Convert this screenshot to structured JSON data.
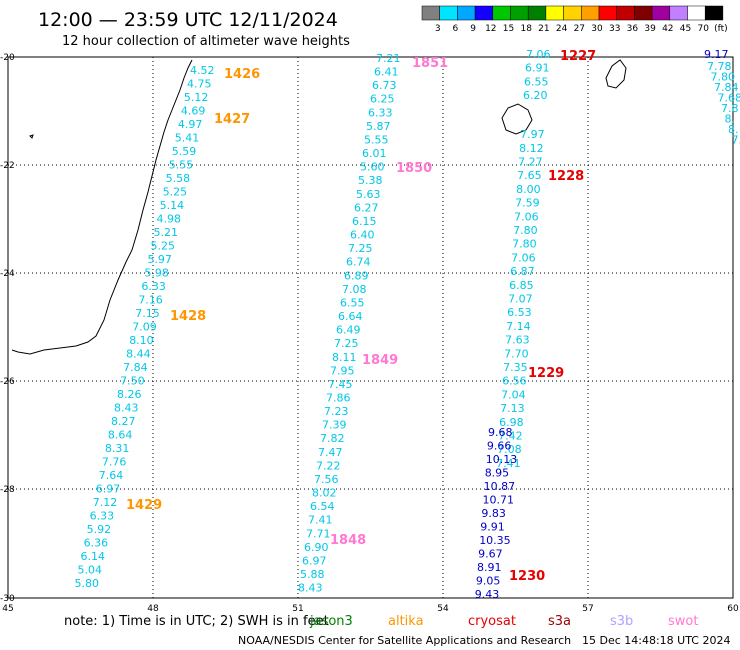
{
  "header": {
    "title": "12:00 — 23:59 UTC 12/11/2024",
    "subtitle": "12 hour collection of altimeter wave heights"
  },
  "legend": {
    "colors": [
      "#808080",
      "#00e5ff",
      "#00a8ff",
      "#1400ff",
      "#00c800",
      "#00a000",
      "#008000",
      "#ffff00",
      "#ffd200",
      "#ffa000",
      "#ff0000",
      "#c00000",
      "#800000",
      "#a000a0",
      "#c080ff",
      "#ffffff",
      "#000000"
    ],
    "labels": [
      "3",
      "6",
      "9",
      "12",
      "15",
      "18",
      "21",
      "24",
      "27",
      "30",
      "33",
      "36",
      "39",
      "42",
      "45",
      "70",
      "(ft)"
    ]
  },
  "axes": {
    "x_ticks": [
      "45",
      "48",
      "51",
      "54",
      "57",
      "60"
    ],
    "y_ticks": [
      "-20",
      "-22",
      "-24",
      "-26",
      "-28",
      "-30"
    ]
  },
  "tracks": [
    {
      "name": "t1426",
      "color": "#00c8e6",
      "labels": [
        "4.52",
        "4.75",
        "5.12",
        "4.69",
        "4.97",
        "5.41",
        "5.59",
        "5.55",
        "5.58",
        "5.25",
        "5.14",
        "4.98",
        "5.21",
        "5.25",
        "5.97",
        "5.98",
        "6.33",
        "7.16",
        "7.15",
        "7.09",
        "8.10",
        "8.44",
        "7.84",
        "7.50",
        "8.26",
        "8.43",
        "8.27",
        "8.64",
        "8.31",
        "7.76",
        "7.64",
        "6.97",
        "7.12",
        "6.33",
        "5.92",
        "6.36",
        "6.14",
        "5.04",
        "5.80"
      ]
    },
    {
      "name": "t1850",
      "color": "#00c8e6",
      "labels": [
        "7.21",
        "6.41",
        "6.73",
        "6.25",
        "6.33",
        "5.87",
        "5.55",
        "6.01",
        "5.60",
        "5.38",
        "5.63",
        "6.27",
        "6.15",
        "6.40",
        "7.25",
        "6.74",
        "6.89",
        "7.08",
        "6.55",
        "6.64",
        "6.49",
        "7.25",
        "8.11",
        "7.95",
        "7.45",
        "7.86",
        "7.23",
        "7.39",
        "7.82",
        "7.47",
        "7.22",
        "7.56",
        "8.02",
        "6.54",
        "7.41",
        "7.71",
        "6.90",
        "6.97",
        "5.88",
        "8.43"
      ]
    },
    {
      "name": "t1228",
      "color": "#00c8e6",
      "labels": [
        "7.06",
        "6.91",
        "6.55",
        "6.20",
        "7.97",
        "8.12",
        "7.27",
        "7.65",
        "8.00",
        "7.59",
        "7.06",
        "7.80",
        "7.80",
        "7.06",
        "6.87",
        "6.85",
        "7.07",
        "6.53",
        "7.14",
        "7.63",
        "7.70",
        "7.35",
        "6.56",
        "7.04",
        "7.13",
        "6.98",
        "7.42",
        "7.08",
        "7.41"
      ]
    },
    {
      "name": "t1230",
      "color": "#0000c8",
      "labels": [
        "9.68",
        "9.66",
        "10.13",
        "8.95",
        "10.87",
        "10.71",
        "9.83",
        "9.91",
        "10.35",
        "9.67",
        "8.91",
        "9.05",
        "9.43"
      ]
    },
    {
      "name": "tRight1",
      "color": "#0000c8",
      "labels": [
        "9.17"
      ]
    },
    {
      "name": "tRight2",
      "color": "#00c8e6",
      "labels": [
        "7.78",
        "7.80",
        "7.84",
        "7.68",
        "7.8",
        "8.",
        "8.",
        "7."
      ]
    }
  ],
  "times": [
    {
      "label": "1426",
      "color": "#ff9600"
    },
    {
      "label": "1427",
      "color": "#ff9600"
    },
    {
      "label": "1428",
      "color": "#ff9600"
    },
    {
      "label": "1429",
      "color": "#ff9600"
    },
    {
      "label": "1851",
      "color": "#ff78d2"
    },
    {
      "label": "1850",
      "color": "#ff78d2"
    },
    {
      "label": "1849",
      "color": "#ff78d2"
    },
    {
      "label": "1848",
      "color": "#ff78d2"
    },
    {
      "label": "1227",
      "color": "#e60000"
    },
    {
      "label": "1228",
      "color": "#e60000"
    },
    {
      "label": "1229",
      "color": "#e60000"
    },
    {
      "label": "1230",
      "color": "#e60000"
    }
  ],
  "footer": {
    "note": "note: 1) Time is in UTC; 2) SWH is in feet",
    "satellites": [
      {
        "name": "jason3",
        "color": "#008000"
      },
      {
        "name": "altika",
        "color": "#ff9600"
      },
      {
        "name": "cryosat",
        "color": "#e60000"
      },
      {
        "name": "s3a",
        "color": "#a00000"
      },
      {
        "name": "s3b",
        "color": "#b4a0ff"
      },
      {
        "name": "swot",
        "color": "#ff78d2"
      }
    ],
    "credit": "NOAA/NESDIS Center for Satellite Applications and Research",
    "timestamp": "15 Dec 14:48:18 UTC 2024"
  }
}
